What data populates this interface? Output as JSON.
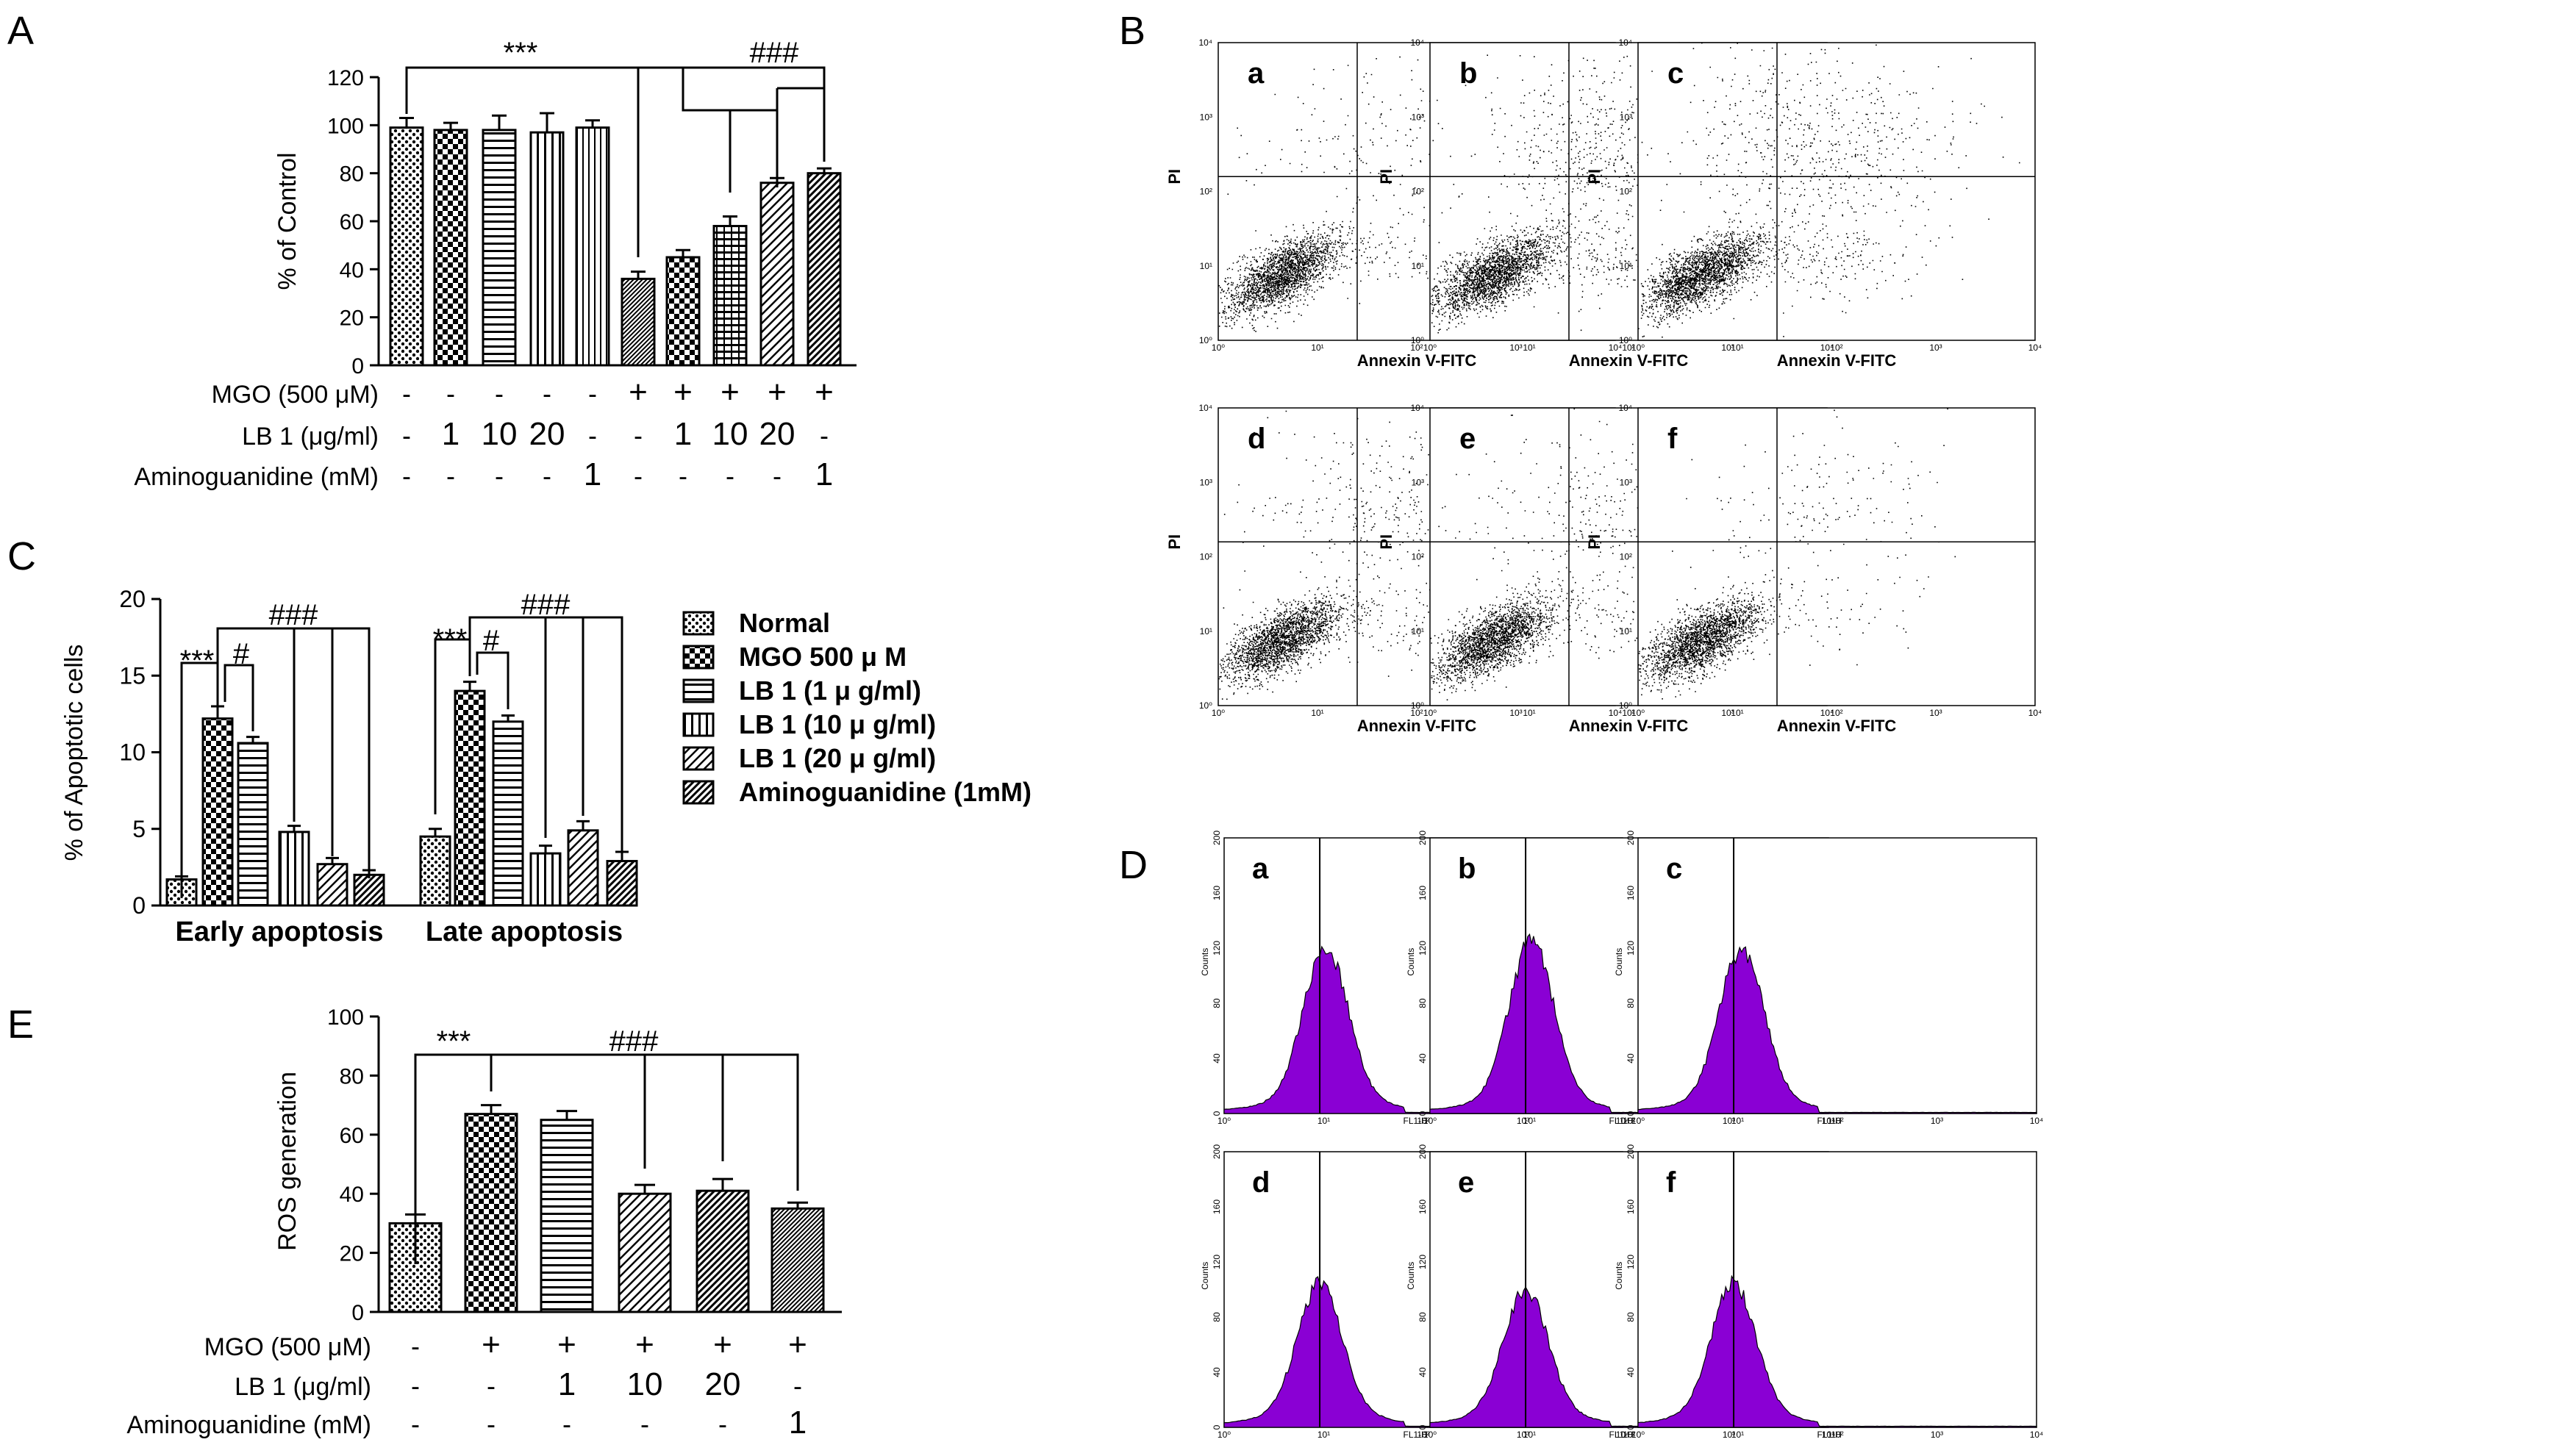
{
  "panels": {
    "A": "A",
    "B": "B",
    "C": "C",
    "D": "D",
    "E": "E"
  },
  "sig_marks": {
    "star3": "***",
    "hash3": "###",
    "hash1": "#"
  },
  "chart_data": [
    {
      "id": "A",
      "type": "bar",
      "ylabel": "% of Control",
      "ylim": [
        0,
        120
      ],
      "yticks": [
        "0",
        "20",
        "40",
        "60",
        "80",
        "100",
        "120"
      ],
      "values": [
        99,
        98,
        98,
        97,
        99,
        36,
        45,
        58,
        76,
        80
      ],
      "errors": [
        4,
        3,
        6,
        8,
        3,
        3,
        3,
        4,
        2,
        2
      ],
      "patterns": [
        "dots",
        "checker",
        "hlines",
        "vlines",
        "vlines2",
        "solid",
        "checker",
        "hlines2",
        "diag",
        "diag2"
      ],
      "conditions": [
        {
          "label": "MGO (500 μM)",
          "values": [
            "-",
            "-",
            "-",
            "-",
            "-",
            "+",
            "+",
            "+",
            "+",
            "+"
          ]
        },
        {
          "label": "LB 1 (μg/ml)",
          "values": [
            "-",
            "1",
            "10",
            "20",
            "-",
            "-",
            "1",
            "10",
            "20",
            "-"
          ]
        },
        {
          "label": "Aminoguanidine (mM)",
          "values": [
            "-",
            "-",
            "-",
            "-",
            "1",
            "-",
            "-",
            "-",
            "-",
            "1"
          ]
        }
      ]
    },
    {
      "id": "C",
      "type": "bar",
      "ylabel": "% of Apoptotic cells",
      "ylim": [
        0,
        20
      ],
      "yticks": [
        "0",
        "5",
        "10",
        "15",
        "20"
      ],
      "categories": [
        "Early apoptosis",
        "Late apoptosis"
      ],
      "series": [
        {
          "name": "Normal",
          "values": [
            1.7,
            4.5
          ],
          "errors": [
            0.2,
            0.5
          ]
        },
        {
          "name": "MGO 500 μ M",
          "values": [
            12.2,
            14.0
          ],
          "errors": [
            0.8,
            0.6
          ]
        },
        {
          "name": "LB 1 (1 μ g/ml)",
          "values": [
            10.6,
            12.0
          ],
          "errors": [
            0.4,
            0.4
          ]
        },
        {
          "name": "LB 1 (10 μ g/ml)",
          "values": [
            4.8,
            3.4
          ],
          "errors": [
            0.4,
            0.5
          ]
        },
        {
          "name": "LB 1 (20 μ g/ml)",
          "values": [
            2.7,
            4.9
          ],
          "errors": [
            0.4,
            0.6
          ]
        },
        {
          "name": "Aminoguanidine (1mM)",
          "values": [
            2.0,
            2.9
          ],
          "errors": [
            0.3,
            0.6
          ]
        }
      ]
    },
    {
      "id": "E",
      "type": "bar",
      "ylabel": "ROS generation",
      "ylim": [
        0,
        100
      ],
      "yticks": [
        "0",
        "20",
        "40",
        "60",
        "80",
        "100"
      ],
      "values": [
        30,
        67,
        65,
        40,
        41,
        35
      ],
      "errors": [
        3,
        3,
        3,
        3,
        4,
        2
      ],
      "conditions": [
        {
          "label": "MGO (500 μM)",
          "values": [
            "-",
            "+",
            "+",
            "+",
            "+",
            "+"
          ]
        },
        {
          "label": "LB 1 (μg/ml)",
          "values": [
            "-",
            "-",
            "1",
            "10",
            "20",
            "-"
          ]
        },
        {
          "label": "Aminoguanidine (mM)",
          "values": [
            "-",
            "-",
            "-",
            "-",
            "-",
            "1"
          ]
        }
      ]
    },
    {
      "id": "B",
      "type": "scatter",
      "xlabel": "Annexin V-FITC",
      "ylabel": "PI",
      "subpanels": [
        "a",
        "b",
        "c",
        "d",
        "e",
        "f"
      ],
      "log_ticks": [
        "10⁰",
        "10¹",
        "10²",
        "10³",
        "10⁴"
      ]
    },
    {
      "id": "D",
      "type": "area",
      "xlabel": "FL1-H",
      "ylabel": "Counts",
      "subpanels": [
        "a",
        "b",
        "c",
        "d",
        "e",
        "f"
      ],
      "yticks": [
        "0",
        "40",
        "80",
        "120",
        "160",
        "200"
      ],
      "log_ticks": [
        "10⁰",
        "10¹",
        "10²",
        "10³",
        "10⁴"
      ],
      "fill_color": "#8a00d4"
    }
  ]
}
